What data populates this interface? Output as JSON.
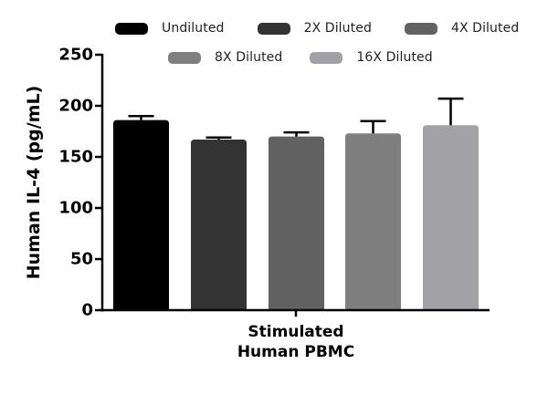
{
  "chart_data": {
    "type": "bar",
    "title": "",
    "xlabel": "Stimulated Human PBMC",
    "xlabel_lines": [
      "Stimulated",
      "Human PBMC"
    ],
    "ylabel": "Human IL-4 (pg/mL)",
    "ylim": [
      0,
      250
    ],
    "yticks": [
      0,
      50,
      100,
      150,
      200,
      250
    ],
    "ytick_labels": [
      "0",
      "50",
      "100",
      "150",
      "200",
      "250"
    ],
    "grid": false,
    "legend_position": "top",
    "categories": [
      "Stimulated Human PBMC"
    ],
    "series": [
      {
        "name": "Undiluted",
        "values": [
          186
        ],
        "error": [
          4
        ],
        "color": "#000000"
      },
      {
        "name": "2X Diluted",
        "values": [
          167
        ],
        "error": [
          2
        ],
        "color": "#333333"
      },
      {
        "name": "4X Diluted",
        "values": [
          170
        ],
        "error": [
          4
        ],
        "color": "#616161"
      },
      {
        "name": "8X Diluted",
        "values": [
          173
        ],
        "error": [
          12
        ],
        "color": "#7f7f7f"
      },
      {
        "name": "16X Diluted",
        "values": [
          181
        ],
        "error": [
          26
        ],
        "color": "#a2a1a6"
      }
    ]
  },
  "legend": {
    "row1": [
      {
        "label": "Undiluted",
        "color": "#000000"
      },
      {
        "label": "2X Diluted",
        "color": "#333333"
      },
      {
        "label": "4X Diluted",
        "color": "#616161"
      }
    ],
    "row2": [
      {
        "label": "8X Diluted",
        "color": "#7f7f7f"
      },
      {
        "label": "16X Diluted",
        "color": "#a2a1a6"
      }
    ]
  }
}
